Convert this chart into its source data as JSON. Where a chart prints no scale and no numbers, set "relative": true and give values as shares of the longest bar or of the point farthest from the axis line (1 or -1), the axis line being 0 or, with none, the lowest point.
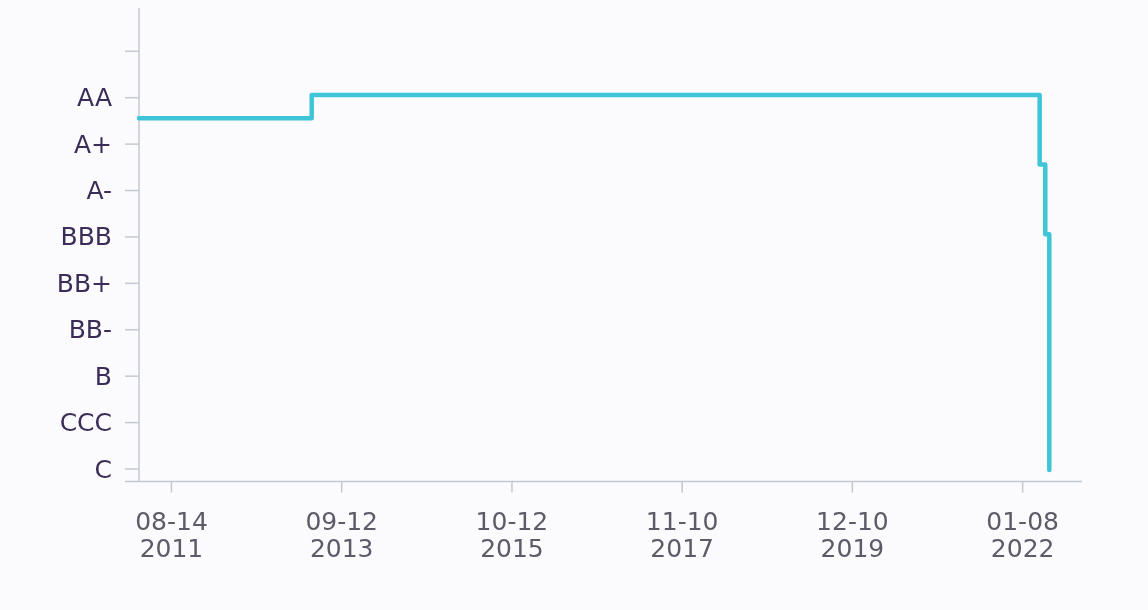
{
  "chart_data": {
    "type": "step",
    "relative": true,
    "x": [
      "2011-03-22",
      "2013-05-01",
      "2022-03-25",
      "2022-04-19",
      "2022-05-07"
    ],
    "series": [
      {
        "color": "#3fc5d7",
        "values": [
          0.94,
          1,
          0.82,
          0.64,
          0.03
        ]
      }
    ],
    "xlim": [
      "2011-03-22",
      "2022-09-30"
    ],
    "xticks": [
      {
        "value": "2011-08-14",
        "label": "08-14\n2011"
      },
      {
        "value": "2013-09-12",
        "label": "09-12\n2013"
      },
      {
        "value": "2015-10-12",
        "label": "10-12\n2015"
      },
      {
        "value": "2017-11-10",
        "label": "11-10\n2017"
      },
      {
        "value": "2019-12-10",
        "label": "12-10\n2019"
      },
      {
        "value": "2022-01-08",
        "label": "01-08\n2022"
      }
    ],
    "y_categories": [
      null,
      "AA",
      "A+",
      "A-",
      "BBB",
      "BB+",
      "BB-",
      "B",
      "CCC",
      "C"
    ]
  }
}
